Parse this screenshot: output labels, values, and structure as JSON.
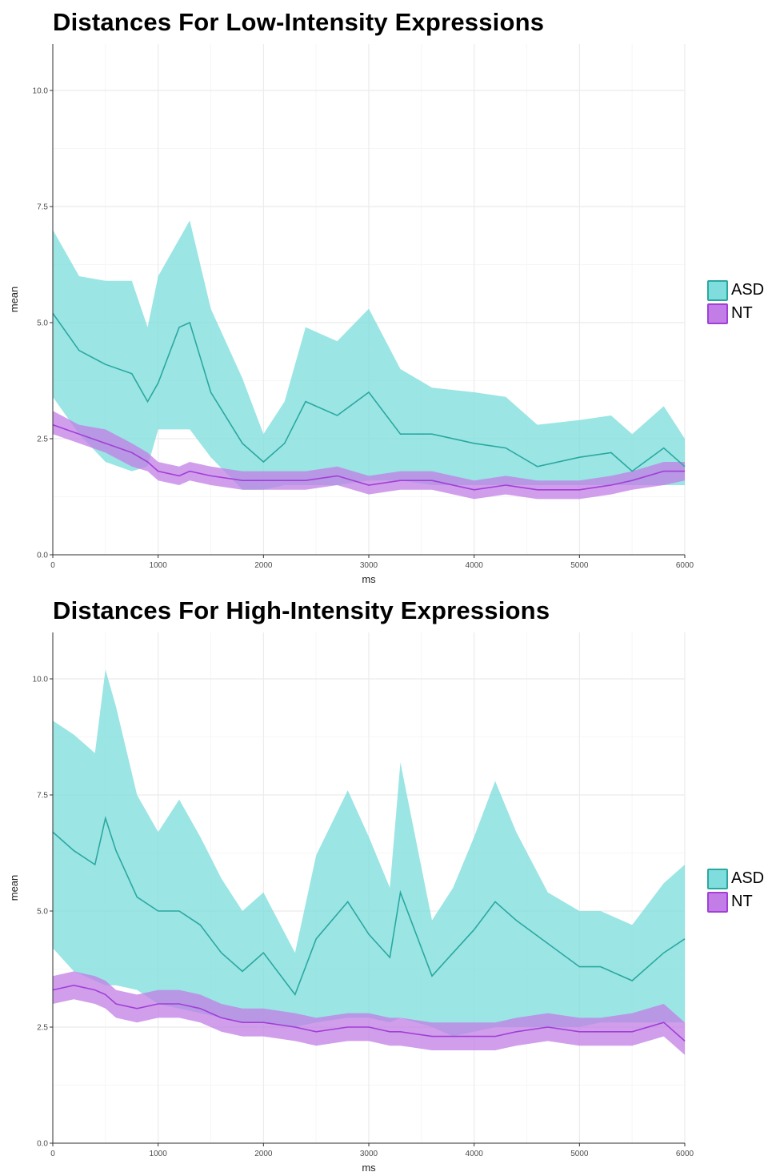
{
  "colors": {
    "ASD": "#2aa8a0",
    "NT": "#a13fd6",
    "ASD_band": "#7fdedd",
    "NT_band": "#c27ee6",
    "grid": "#ebebeb"
  },
  "chart_data": [
    {
      "type": "line",
      "title": "Distances For Low-Intensity Expressions",
      "xlabel": "ms",
      "ylabel": "mean",
      "xlim": [
        0,
        6000
      ],
      "ylim": [
        0,
        11
      ],
      "x_ticks": [
        "0",
        "1000",
        "2000",
        "3000",
        "4000",
        "5000",
        "6000"
      ],
      "y_ticks": [
        "0.0",
        "2.5",
        "5.0",
        "7.5",
        "10.0"
      ],
      "legend": [
        "ASD",
        "NT"
      ],
      "legend_position": "right",
      "grid": true,
      "x": [
        0,
        250,
        500,
        750,
        900,
        1000,
        1200,
        1300,
        1500,
        1800,
        2000,
        2200,
        2400,
        2700,
        3000,
        3300,
        3600,
        4000,
        4300,
        4600,
        5000,
        5300,
        5500,
        5800,
        6000
      ],
      "series": [
        {
          "name": "ASD",
          "values": [
            5.2,
            4.4,
            4.1,
            3.9,
            3.3,
            3.7,
            4.9,
            5.0,
            3.5,
            2.4,
            2.0,
            2.4,
            3.3,
            3.0,
            3.5,
            2.6,
            2.6,
            2.4,
            2.3,
            1.9,
            2.1,
            2.2,
            1.8,
            2.3,
            1.9
          ],
          "lower": [
            3.4,
            2.6,
            2.0,
            1.8,
            1.9,
            2.7,
            2.7,
            2.7,
            2.1,
            1.4,
            1.4,
            1.5,
            1.5,
            1.5,
            1.6,
            1.6,
            1.5,
            1.5,
            1.5,
            1.5,
            1.5,
            1.5,
            1.5,
            1.5,
            1.5
          ],
          "upper": [
            7.0,
            6.0,
            5.9,
            5.9,
            4.9,
            6.0,
            6.8,
            7.2,
            5.3,
            3.8,
            2.6,
            3.3,
            4.9,
            4.6,
            5.3,
            4.0,
            3.6,
            3.5,
            3.4,
            2.8,
            2.9,
            3.0,
            2.6,
            3.2,
            2.5
          ]
        },
        {
          "name": "NT",
          "values": [
            2.8,
            2.6,
            2.4,
            2.2,
            2.0,
            1.8,
            1.7,
            1.8,
            1.7,
            1.6,
            1.6,
            1.6,
            1.6,
            1.7,
            1.5,
            1.6,
            1.6,
            1.4,
            1.5,
            1.4,
            1.4,
            1.5,
            1.6,
            1.8,
            1.8
          ],
          "lower": [
            2.6,
            2.4,
            2.2,
            1.9,
            1.8,
            1.6,
            1.5,
            1.6,
            1.5,
            1.4,
            1.4,
            1.4,
            1.4,
            1.5,
            1.3,
            1.4,
            1.4,
            1.2,
            1.3,
            1.2,
            1.2,
            1.3,
            1.4,
            1.5,
            1.6
          ],
          "upper": [
            3.1,
            2.8,
            2.7,
            2.4,
            2.2,
            2.0,
            1.9,
            2.0,
            1.9,
            1.8,
            1.8,
            1.8,
            1.8,
            1.9,
            1.7,
            1.8,
            1.8,
            1.6,
            1.7,
            1.6,
            1.6,
            1.7,
            1.8,
            2.0,
            2.0
          ]
        }
      ]
    },
    {
      "type": "line",
      "title": "Distances For High-Intensity Expressions",
      "xlabel": "ms",
      "ylabel": "mean",
      "xlim": [
        0,
        6000
      ],
      "ylim": [
        0,
        11
      ],
      "x_ticks": [
        "0",
        "1000",
        "2000",
        "3000",
        "4000",
        "5000",
        "6000"
      ],
      "y_ticks": [
        "0.0",
        "2.5",
        "5.0",
        "7.5",
        "10.0"
      ],
      "legend": [
        "ASD",
        "NT"
      ],
      "legend_position": "right",
      "grid": true,
      "x": [
        0,
        200,
        400,
        500,
        600,
        800,
        1000,
        1200,
        1400,
        1600,
        1800,
        2000,
        2300,
        2500,
        2800,
        3000,
        3200,
        3300,
        3600,
        3800,
        4000,
        4200,
        4400,
        4700,
        5000,
        5200,
        5500,
        5800,
        6000
      ],
      "series": [
        {
          "name": "ASD",
          "values": [
            6.7,
            6.3,
            6.0,
            7.0,
            6.3,
            5.3,
            5.0,
            5.0,
            4.7,
            4.1,
            3.7,
            4.1,
            3.2,
            4.4,
            5.2,
            4.5,
            4.0,
            5.4,
            3.6,
            4.1,
            4.6,
            5.2,
            4.8,
            4.3,
            3.8,
            3.8,
            3.5,
            4.1,
            4.4
          ],
          "lower": [
            4.2,
            3.7,
            3.5,
            3.4,
            3.4,
            3.3,
            3.0,
            2.9,
            2.8,
            2.7,
            2.6,
            2.6,
            2.5,
            2.6,
            2.7,
            2.7,
            2.6,
            2.7,
            2.5,
            2.3,
            2.4,
            2.5,
            2.5,
            2.5,
            2.5,
            2.6,
            2.6,
            2.6,
            2.6
          ],
          "upper": [
            9.1,
            8.8,
            8.4,
            10.2,
            9.4,
            7.5,
            6.7,
            7.4,
            6.6,
            5.7,
            5.0,
            5.4,
            4.1,
            6.2,
            7.6,
            6.6,
            5.5,
            8.2,
            4.8,
            5.5,
            6.6,
            7.8,
            6.7,
            5.4,
            5.0,
            5.0,
            4.7,
            5.6,
            6.0
          ]
        },
        {
          "name": "NT",
          "values": [
            3.3,
            3.4,
            3.3,
            3.2,
            3.0,
            2.9,
            3.0,
            3.0,
            2.9,
            2.7,
            2.6,
            2.6,
            2.5,
            2.4,
            2.5,
            2.5,
            2.4,
            2.4,
            2.3,
            2.3,
            2.3,
            2.3,
            2.4,
            2.5,
            2.4,
            2.4,
            2.4,
            2.6,
            2.2
          ],
          "lower": [
            3.0,
            3.1,
            3.0,
            2.9,
            2.7,
            2.6,
            2.7,
            2.7,
            2.6,
            2.4,
            2.3,
            2.3,
            2.2,
            2.1,
            2.2,
            2.2,
            2.1,
            2.1,
            2.0,
            2.0,
            2.0,
            2.0,
            2.1,
            2.2,
            2.1,
            2.1,
            2.1,
            2.3,
            1.9
          ],
          "upper": [
            3.6,
            3.7,
            3.6,
            3.5,
            3.3,
            3.2,
            3.3,
            3.3,
            3.2,
            3.0,
            2.9,
            2.9,
            2.8,
            2.7,
            2.8,
            2.8,
            2.7,
            2.7,
            2.6,
            2.6,
            2.6,
            2.6,
            2.7,
            2.8,
            2.7,
            2.7,
            2.8,
            3.0,
            2.6
          ]
        }
      ]
    }
  ]
}
